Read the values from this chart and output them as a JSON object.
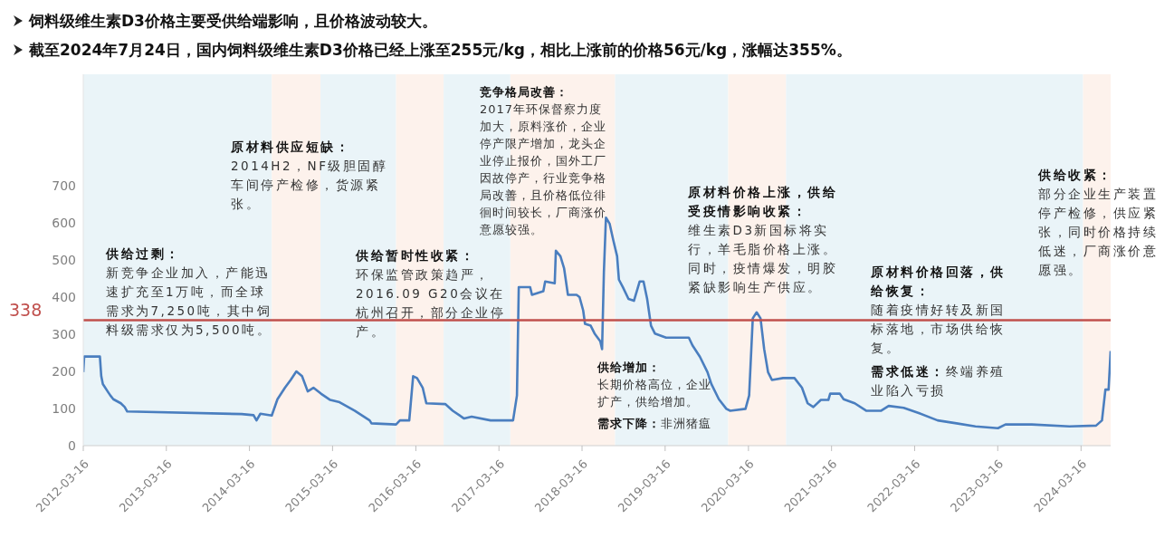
{
  "chart_data": {
    "type": "line",
    "title": "饲料级维生素D3价格主要受供给端影响，且价格波动较大。",
    "subtitle": "截至2024年7月24日，国内饲料级维生素D3价格已经上涨至255元/kg，相比上涨前的价格56元/kg，涨幅达355%。",
    "x": [
      "2012-03-16",
      "2012-03-20",
      "2012-05-28",
      "2012-06-03",
      "2012-06-10",
      "2012-07-01",
      "2012-07-13",
      "2012-07-26",
      "2012-08-28",
      "2012-09-14",
      "2012-09-25",
      "2014-02-10",
      "2014-04-03",
      "2014-04-16",
      "2014-05-03",
      "2014-06-22",
      "2014-07-17",
      "2014-08-19",
      "2014-09-13",
      "2014-10-08",
      "2014-11-02",
      "2014-11-27",
      "2014-12-22",
      "2015-01-24",
      "2015-03-06",
      "2015-04-16",
      "2015-06-21",
      "2015-08-26",
      "2015-09-03",
      "2015-12-20",
      "2016-01-06",
      "2016-02-16",
      "2016-03-04",
      "2016-03-21",
      "2016-04-15",
      "2016-05-01",
      "2016-07-23",
      "2016-08-25",
      "2016-10-14",
      "2016-11-16",
      "2017-02-07",
      "2017-05-17",
      "2017-06-03",
      "2017-06-11",
      "2017-07-31",
      "2017-08-08",
      "2017-09-27",
      "2017-10-05",
      "2017-11-16",
      "2017-11-21",
      "2017-12-11",
      "2017-12-27",
      "2018-01-13",
      "2018-02-20",
      "2018-03-05",
      "2018-03-21",
      "2018-03-29",
      "2018-04-23",
      "2018-05-10",
      "2018-06-04",
      "2018-06-12",
      "2018-06-20",
      "2018-06-29",
      "2018-07-15",
      "2018-08-01",
      "2018-08-17",
      "2018-08-25",
      "2018-09-11",
      "2018-10-06",
      "2018-10-30",
      "2018-11-24",
      "2018-12-11",
      "2018-12-27",
      "2019-01-13",
      "2019-01-30",
      "2019-03-20",
      "2019-06-28",
      "2019-07-14",
      "2019-08-16",
      "2019-09-18",
      "2019-10-05",
      "2019-11-07",
      "2019-12-10",
      "2019-12-27",
      "2020-03-03",
      "2020-03-19",
      "2020-04-04",
      "2020-04-21",
      "2020-05-08",
      "2020-05-24",
      "2020-06-10",
      "2020-06-27",
      "2020-08-15",
      "2020-10-04",
      "2020-11-06",
      "2020-12-01",
      "2020-12-26",
      "2021-01-28",
      "2021-03-02",
      "2021-03-10",
      "2021-04-21",
      "2021-05-08",
      "2021-06-26",
      "2021-08-15",
      "2021-10-20",
      "2021-11-22",
      "2022-01-27",
      "2022-04-03",
      "2022-06-25",
      "2022-09-16",
      "2022-12-08",
      "2023-03-17",
      "2023-04-19",
      "2023-08-13",
      "2024-01-25",
      "2024-05-21",
      "2024-06-16",
      "2024-07-01",
      "2024-07-15",
      "2024-07-24"
    ],
    "series": [
      {
        "color": "#4a7ebf",
        "values": [
          198,
          240,
          240,
          187,
          166,
          146,
          135,
          125,
          114,
          104,
          92,
          85,
          82,
          68,
          86,
          81,
          125,
          156,
          177,
          200,
          187,
          146,
          156,
          140,
          123,
          117,
          94,
          68,
          60,
          57,
          68,
          68,
          187,
          182,
          156,
          114,
          112,
          94,
          73,
          78,
          68,
          68,
          135,
          427,
          427,
          406,
          416,
          442,
          437,
          525,
          510,
          478,
          406,
          406,
          400,
          364,
          328,
          323,
          302,
          281,
          260,
          468,
          614,
          598,
          551,
          510,
          447,
          427,
          395,
          390,
          442,
          442,
          395,
          323,
          302,
          291,
          291,
          270,
          239,
          198,
          166,
          125,
          99,
          94,
          99,
          135,
          343,
          359,
          343,
          260,
          198,
          177,
          182,
          182,
          156,
          114,
          104,
          123,
          123,
          140,
          140,
          125,
          114,
          94,
          94,
          107,
          102,
          88,
          68,
          60,
          52,
          47,
          57,
          57,
          52,
          54,
          68,
          151,
          151,
          255
        ]
      }
    ],
    "xlim": [
      "2012-03-16",
      "2024-07-24"
    ],
    "xticks": [
      "2012-03-16",
      "2013-03-16",
      "2014-03-16",
      "2015-03-16",
      "2016-03-16",
      "2017-03-16",
      "2018-03-16",
      "2019-03-16",
      "2020-03-16",
      "2021-03-16",
      "2022-03-16",
      "2023-03-16",
      "2024-03-16"
    ],
    "ylim": [
      0,
      1000
    ],
    "yticks": [
      0,
      100,
      200,
      300,
      400,
      500,
      600,
      700
    ],
    "ref_lines": [
      {
        "axis": "y",
        "value": 338,
        "label": "338",
        "color": "#c0504d"
      }
    ],
    "bands": [
      {
        "axis": "x",
        "from": "2012-03-16",
        "to": "2014-06-22",
        "color": "#eaf4f8"
      },
      {
        "axis": "x",
        "from": "2014-06-22",
        "to": "2015-01-22",
        "color": "#fdf2ec"
      },
      {
        "axis": "x",
        "from": "2015-01-22",
        "to": "2015-12-20",
        "color": "#eaf4f8"
      },
      {
        "axis": "x",
        "from": "2015-12-20",
        "to": "2016-07-16",
        "color": "#fdf2ec"
      },
      {
        "axis": "x",
        "from": "2016-07-16",
        "to": "2017-05-05",
        "color": "#eaf4f8"
      },
      {
        "axis": "x",
        "from": "2017-05-05",
        "to": "2018-08-08",
        "color": "#fdf2ec"
      },
      {
        "axis": "x",
        "from": "2018-08-08",
        "to": "2019-12-18",
        "color": "#eaf4f8"
      },
      {
        "axis": "x",
        "from": "2019-12-18",
        "to": "2020-08-28",
        "color": "#fdf2ec"
      },
      {
        "axis": "x",
        "from": "2020-08-28",
        "to": "2024-03-25",
        "color": "#eaf4f8"
      },
      {
        "axis": "x",
        "from": "2024-03-25",
        "to": "2024-07-24",
        "color": "#fdf2ec"
      }
    ],
    "annotations": [
      "供给过剩：",
      "新竞争企业加入，产能迅速扩充至1万吨，而全球需求为7,250吨，其中饲料级需求仅为5,500吨。",
      "原材料供应短缺：",
      "2014H2，NF级胆固醇车间停产检修，货源紧张。",
      "供给暂时性收紧：",
      "环保监管政策趋严，2016.09 G20会议在杭州召开，部分企业停产。",
      "竞争格局改善：",
      "2017年环保督察力度加大，原料涨价，企业停产限产增加，龙头企业停止报价，国外工厂因故停产，行业竞争格局改善，且价格低位徘徊时间较长，厂商涨价意愿较强。",
      "原材料价格上涨，供给受疫情影响收紧：",
      "维生素D3新国标将实行，羊毛脂价格上涨。同时，疫情爆发，明胶紧缺影响生产供应。",
      "供给增加：",
      "长期价格高位，企业扩产，供给增加。",
      "需求下降：",
      "非洲猪瘟",
      "原材料价格回落，供给恢复：",
      "随着疫情好转及新国标落地，市场供给恢复。",
      "需求低迷：",
      "终端养殖业陷入亏损",
      "供给收紧：",
      "部分企业生产装置停产检修，供应紧张，同时价格持续低迷，厂商涨价意愿强。"
    ]
  }
}
